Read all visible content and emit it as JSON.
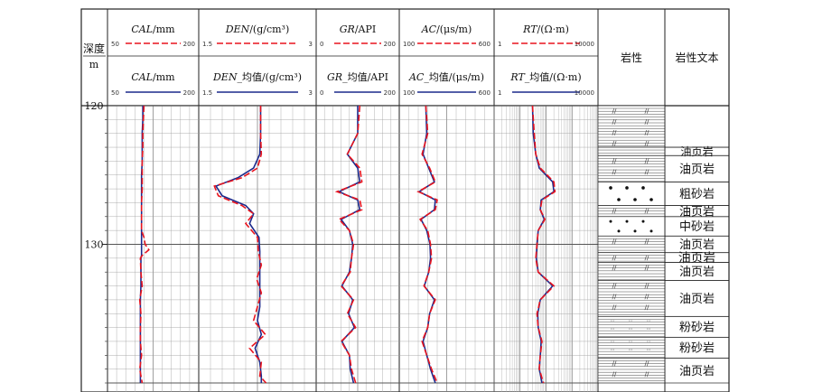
{
  "chart_data": {
    "type": "line",
    "depth_header": {
      "line1": "深度",
      "line2": "m"
    },
    "depth_ticks": [
      120,
      130
    ],
    "ylim": [
      120,
      140
    ],
    "tracks": [
      {
        "label": "CAL/mm",
        "curve": "CAL",
        "unit": "/mm",
        "scale": [
          "50",
          "200"
        ],
        "xlim": [
          50,
          200
        ],
        "log": false,
        "avg_label": "CAL_均值/mm",
        "avg_curve": "CAL_均值",
        "avg_unit": "/mm",
        "avg_scale": [
          "50",
          "200"
        ],
        "depth": [
          120,
          121,
          122,
          123,
          124,
          125,
          126,
          127,
          128,
          129,
          129.5,
          130,
          130.4,
          130.8,
          131,
          132,
          133,
          134,
          135,
          136,
          137,
          138,
          139,
          140
        ],
        "raw": [
          110,
          109,
          108,
          108,
          107,
          107,
          107,
          106,
          106,
          106,
          110,
          112,
          118,
          107,
          104,
          105,
          107,
          103,
          105,
          104,
          104,
          106,
          103,
          107
        ],
        "avg": [
          108,
          108,
          107,
          107,
          107,
          106,
          106,
          106,
          106,
          106,
          106,
          106,
          106,
          106,
          105,
          105,
          105,
          104,
          104,
          104,
          104,
          104,
          104,
          104
        ]
      },
      {
        "label": "DEN/(g/cm³)",
        "curve": "DEN",
        "unit": "/(g/cm³)",
        "scale": [
          "1.5",
          "3"
        ],
        "xlim": [
          1.5,
          3
        ],
        "log": false,
        "avg_label": "DEN_均值/(g/cm³)",
        "avg_curve": "DEN_均值",
        "avg_unit": "_均值/(g/cm³)",
        "avg_scale": [
          "1.5",
          "3"
        ],
        "depth": [
          120,
          122,
          123.5,
          124.5,
          125.2,
          125.8,
          126.5,
          127.2,
          127.8,
          128.5,
          129.5,
          130.5,
          131.5,
          132.5,
          133.5,
          134.5,
          135.5,
          136.5,
          137.5,
          138.5,
          139.5,
          140
        ],
        "raw": [
          2.29,
          2.29,
          2.3,
          2.25,
          2.05,
          1.7,
          1.75,
          2.05,
          2.2,
          2.1,
          2.25,
          2.26,
          2.3,
          2.24,
          2.3,
          2.25,
          2.2,
          2.35,
          2.15,
          2.3,
          2.28,
          2.36
        ],
        "avg": [
          2.29,
          2.29,
          2.28,
          2.2,
          2.0,
          1.72,
          1.8,
          2.1,
          2.2,
          2.15,
          2.27,
          2.28,
          2.28,
          2.28,
          2.28,
          2.28,
          2.25,
          2.3,
          2.22,
          2.28,
          2.3,
          2.3
        ]
      },
      {
        "label": "GR/API",
        "curve": "GR",
        "unit": "/API",
        "scale": [
          "0",
          "200"
        ],
        "xlim": [
          0,
          200
        ],
        "log": false,
        "avg_label": "GR_均值/API",
        "avg_curve": "GR_均值",
        "avg_unit": "_均值/API",
        "avg_scale": [
          "0",
          "200"
        ],
        "depth": [
          120,
          122,
          123.5,
          124.5,
          125.5,
          126.2,
          126.8,
          127.5,
          128.2,
          129,
          130,
          131,
          132,
          133,
          134,
          135,
          136,
          137,
          138,
          139,
          140
        ],
        "raw": [
          105,
          100,
          75,
          105,
          110,
          50,
          105,
          110,
          55,
          80,
          90,
          85,
          82,
          60,
          90,
          75,
          95,
          60,
          80,
          85,
          95
        ],
        "avg": [
          100,
          100,
          75,
          100,
          105,
          55,
          100,
          105,
          60,
          80,
          88,
          85,
          80,
          62,
          88,
          78,
          92,
          62,
          80,
          82,
          90
        ]
      },
      {
        "label": "AC/(μs/m)",
        "curve": "AC",
        "unit": "/(μs/m)",
        "scale": [
          "100",
          "600"
        ],
        "xlim": [
          100,
          600
        ],
        "log": false,
        "avg_label": "AC_均值/(μs/m)",
        "avg_curve": "AC_均值",
        "avg_unit": "_均值/(μs/m)",
        "avg_scale": [
          "100",
          "600"
        ],
        "depth": [
          120,
          122,
          123.5,
          124.5,
          125.5,
          126.2,
          126.8,
          127.5,
          128.2,
          129,
          130,
          131,
          132,
          133,
          134,
          135,
          136,
          137,
          138,
          139,
          140
        ],
        "raw": [
          240,
          250,
          220,
          260,
          290,
          200,
          300,
          290,
          210,
          250,
          265,
          270,
          255,
          230,
          290,
          260,
          250,
          220,
          245,
          270,
          300
        ],
        "avg": [
          240,
          245,
          225,
          255,
          285,
          205,
          290,
          285,
          215,
          245,
          262,
          265,
          255,
          232,
          285,
          260,
          250,
          225,
          245,
          265,
          290
        ]
      },
      {
        "label": "RT/(Ω·m)",
        "curve": "RT",
        "unit": "/(Ω·m)",
        "scale": [
          "1",
          "10000"
        ],
        "xlim": [
          1,
          10000
        ],
        "log": true,
        "avg_label": "RT_均值/(Ω·m)",
        "avg_curve": "RT_均值",
        "avg_unit": "_均值/(Ω·m)",
        "avg_scale": [
          "1",
          "10000"
        ],
        "depth": [
          120,
          122,
          123.5,
          124.5,
          125.5,
          126.2,
          126.8,
          127.5,
          128.2,
          129,
          130,
          131,
          132,
          133,
          134,
          135,
          136,
          137,
          138,
          139,
          140
        ],
        "raw": [
          30,
          35,
          40,
          60,
          200,
          220,
          70,
          60,
          90,
          50,
          45,
          40,
          50,
          200,
          60,
          45,
          50,
          70,
          60,
          55,
          80
        ],
        "avg": [
          30,
          32,
          40,
          55,
          180,
          200,
          65,
          60,
          85,
          50,
          45,
          42,
          50,
          180,
          60,
          48,
          50,
          65,
          60,
          55,
          70
        ]
      }
    ],
    "lithology_header": "岩性",
    "lithology_text_header": "岩性文本",
    "lithology": [
      {
        "from": 120,
        "to": 123,
        "pattern": "shale",
        "label": ""
      },
      {
        "from": 123,
        "to": 123.6,
        "pattern": "shale",
        "label": "油页岩"
      },
      {
        "from": 123.6,
        "to": 125.5,
        "pattern": "shale",
        "label": "油页岩"
      },
      {
        "from": 125.5,
        "to": 127.2,
        "pattern": "coarse-sand",
        "label": "粗砂岩"
      },
      {
        "from": 127.2,
        "to": 128,
        "pattern": "shale",
        "label": "油页岩"
      },
      {
        "from": 128,
        "to": 129.4,
        "pattern": "medium-sand",
        "label": "中砂岩"
      },
      {
        "from": 129.4,
        "to": 130.6,
        "pattern": "shale",
        "label": "油页岩"
      },
      {
        "from": 130.6,
        "to": 131.3,
        "pattern": "shale",
        "label": "油页岩"
      },
      {
        "from": 131.3,
        "to": 132.6,
        "pattern": "shale",
        "label": "油页岩"
      },
      {
        "from": 132.6,
        "to": 135.2,
        "pattern": "shale",
        "label": "油页岩"
      },
      {
        "from": 135.2,
        "to": 136.7,
        "pattern": "silt",
        "label": "粉砂岩"
      },
      {
        "from": 136.7,
        "to": 138.2,
        "pattern": "silt",
        "label": "粉砂岩"
      },
      {
        "from": 138.2,
        "to": 140,
        "pattern": "shale",
        "label": "油页岩"
      }
    ],
    "series_style": {
      "raw_color": "#e8141e",
      "avg_color": "#1c2a8c"
    }
  }
}
